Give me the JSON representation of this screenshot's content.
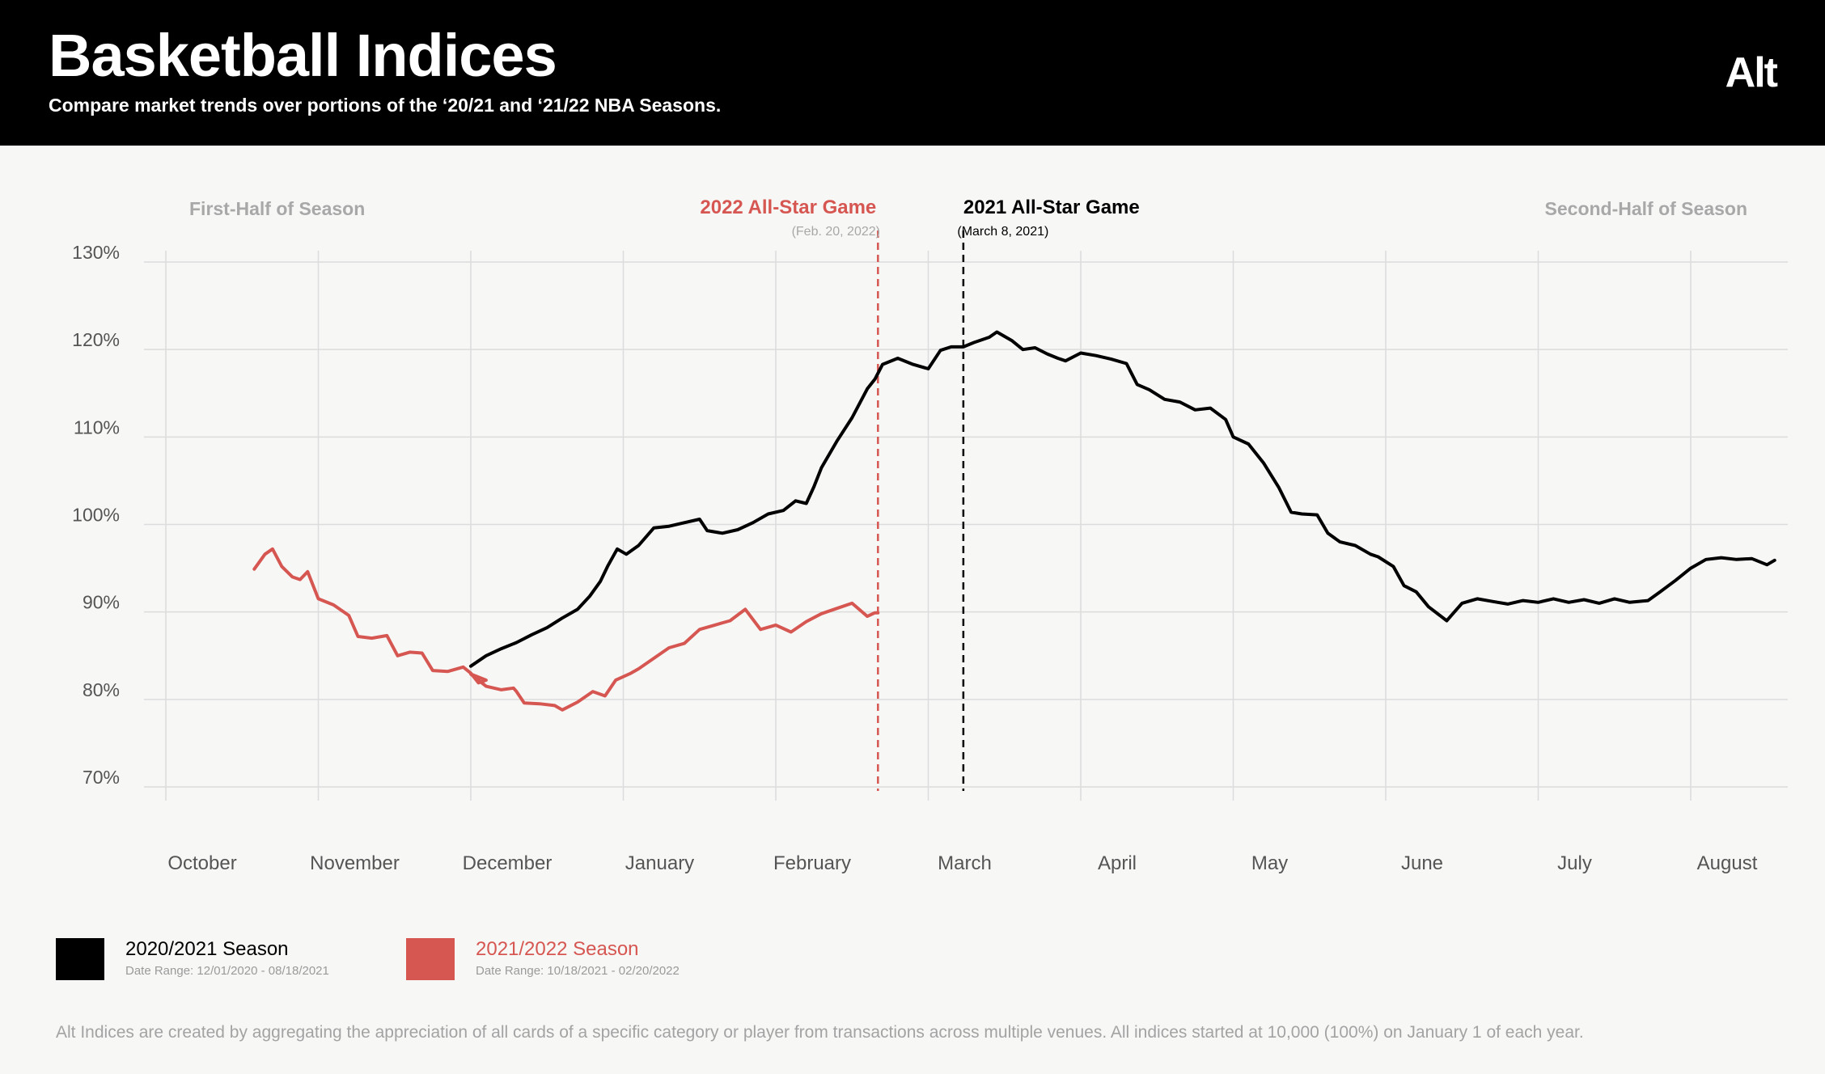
{
  "header": {
    "title": "Basketball Indices",
    "subtitle": "Compare market trends over portions of the ‘20/21 and ‘21/22 NBA Seasons.",
    "logo": "Alt"
  },
  "colors": {
    "black_series": "#000000",
    "red_series": "#d65752",
    "grid": "#dcdcdc",
    "muted_text": "#9a9a9a",
    "axis_text": "#555555"
  },
  "chart_data": {
    "type": "line",
    "ylim": [
      70,
      130
    ],
    "yticks": [
      70,
      80,
      90,
      100,
      110,
      120,
      130
    ],
    "ytick_labels": [
      "70%",
      "80%",
      "90%",
      "100%",
      "110%",
      "120%",
      "130%"
    ],
    "month_labels": [
      "October",
      "November",
      "December",
      "January",
      "February",
      "March",
      "April",
      "May",
      "June",
      "July",
      "August"
    ],
    "section_labels": {
      "first_half": "First-Half of Season",
      "second_half": "Second-Half of Season"
    },
    "annotations": [
      {
        "label": "2022 All-Star Game",
        "sublabel": "(Feb. 20, 2022)",
        "x": 4.67,
        "color": "#d65752"
      },
      {
        "label": "2021 All-Star Game",
        "sublabel": "(March 8, 2021)",
        "x": 5.23,
        "color": "#000000"
      }
    ],
    "series": [
      {
        "name": "2020/2021 Season",
        "date_range": "Date Range: 12/01/2020 - 08/18/2021",
        "color": "#000000",
        "points": [
          [
            2.0,
            83.8
          ],
          [
            2.1,
            85.0
          ],
          [
            2.2,
            85.8
          ],
          [
            2.3,
            86.5
          ],
          [
            2.4,
            87.4
          ],
          [
            2.5,
            88.2
          ],
          [
            2.6,
            89.3
          ],
          [
            2.7,
            90.3
          ],
          [
            2.78,
            91.8
          ],
          [
            2.85,
            93.5
          ],
          [
            2.9,
            95.3
          ],
          [
            2.96,
            97.2
          ],
          [
            3.02,
            96.6
          ],
          [
            3.1,
            97.6
          ],
          [
            3.2,
            99.6
          ],
          [
            3.3,
            99.8
          ],
          [
            3.4,
            100.2
          ],
          [
            3.5,
            100.6
          ],
          [
            3.55,
            99.3
          ],
          [
            3.65,
            99.0
          ],
          [
            3.75,
            99.4
          ],
          [
            3.85,
            100.2
          ],
          [
            3.95,
            101.2
          ],
          [
            4.05,
            101.6
          ],
          [
            4.13,
            102.7
          ],
          [
            4.2,
            102.4
          ],
          [
            4.25,
            104.3
          ],
          [
            4.3,
            106.5
          ],
          [
            4.4,
            109.5
          ],
          [
            4.5,
            112.2
          ],
          [
            4.6,
            115.5
          ],
          [
            4.65,
            116.6
          ],
          [
            4.7,
            118.3
          ],
          [
            4.8,
            119.0
          ],
          [
            4.9,
            118.3
          ],
          [
            5.0,
            117.8
          ],
          [
            5.08,
            119.9
          ],
          [
            5.15,
            120.3
          ],
          [
            5.23,
            120.3
          ],
          [
            5.3,
            120.8
          ],
          [
            5.4,
            121.4
          ],
          [
            5.45,
            122.0
          ],
          [
            5.55,
            121.0
          ],
          [
            5.62,
            120.0
          ],
          [
            5.7,
            120.2
          ],
          [
            5.78,
            119.5
          ],
          [
            5.85,
            119.0
          ],
          [
            5.9,
            118.7
          ],
          [
            6.0,
            119.6
          ],
          [
            6.1,
            119.3
          ],
          [
            6.2,
            118.9
          ],
          [
            6.3,
            118.4
          ],
          [
            6.37,
            116.0
          ],
          [
            6.45,
            115.4
          ],
          [
            6.55,
            114.3
          ],
          [
            6.65,
            114.0
          ],
          [
            6.75,
            113.1
          ],
          [
            6.85,
            113.3
          ],
          [
            6.95,
            112.0
          ],
          [
            7.0,
            110.0
          ],
          [
            7.1,
            109.2
          ],
          [
            7.2,
            107.0
          ],
          [
            7.3,
            104.2
          ],
          [
            7.38,
            101.4
          ],
          [
            7.45,
            101.2
          ],
          [
            7.55,
            101.1
          ],
          [
            7.62,
            99.0
          ],
          [
            7.7,
            98.0
          ],
          [
            7.8,
            97.6
          ],
          [
            7.9,
            96.6
          ],
          [
            7.95,
            96.3
          ],
          [
            8.05,
            95.2
          ],
          [
            8.12,
            93.0
          ],
          [
            8.2,
            92.3
          ],
          [
            8.28,
            90.6
          ],
          [
            8.4,
            89.0
          ],
          [
            8.5,
            91.0
          ],
          [
            8.6,
            91.5
          ],
          [
            8.7,
            91.2
          ],
          [
            8.8,
            90.9
          ],
          [
            8.9,
            91.3
          ],
          [
            9.0,
            91.1
          ],
          [
            9.1,
            91.5
          ],
          [
            9.2,
            91.1
          ],
          [
            9.3,
            91.4
          ],
          [
            9.4,
            91.0
          ],
          [
            9.5,
            91.5
          ],
          [
            9.6,
            91.1
          ],
          [
            9.72,
            91.3
          ],
          [
            9.8,
            92.3
          ],
          [
            9.9,
            93.6
          ],
          [
            10.0,
            95.0
          ],
          [
            10.1,
            96.0
          ],
          [
            10.2,
            96.2
          ],
          [
            10.3,
            96.0
          ],
          [
            10.4,
            96.1
          ],
          [
            10.5,
            95.4
          ],
          [
            10.55,
            95.9
          ]
        ]
      },
      {
        "name": "2021/2022 Season",
        "date_range": "Date Range: 10/18/2021 - 02/20/2022",
        "color": "#d65752",
        "points": [
          [
            0.58,
            94.9
          ],
          [
            0.65,
            96.6
          ],
          [
            0.7,
            97.2
          ],
          [
            0.76,
            95.2
          ],
          [
            0.83,
            94.0
          ],
          [
            0.88,
            93.7
          ],
          [
            0.93,
            94.6
          ],
          [
            1.0,
            91.5
          ],
          [
            1.1,
            90.8
          ],
          [
            1.2,
            89.6
          ],
          [
            1.26,
            87.2
          ],
          [
            1.35,
            87.0
          ],
          [
            1.45,
            87.3
          ],
          [
            1.52,
            85.0
          ],
          [
            1.6,
            85.4
          ],
          [
            1.68,
            85.3
          ],
          [
            1.75,
            83.3
          ],
          [
            1.85,
            83.2
          ],
          [
            1.95,
            83.7
          ],
          [
            2.0,
            83.0
          ],
          [
            2.05,
            81.9
          ],
          [
            2.1,
            82.2
          ],
          [
            2.0,
            82.9
          ],
          [
            2.1,
            81.5
          ],
          [
            2.2,
            81.1
          ],
          [
            2.28,
            81.3
          ],
          [
            2.3,
            80.9
          ],
          [
            2.35,
            79.6
          ],
          [
            2.45,
            79.5
          ],
          [
            2.55,
            79.3
          ],
          [
            2.6,
            78.8
          ],
          [
            2.7,
            79.7
          ],
          [
            2.8,
            80.9
          ],
          [
            2.88,
            80.4
          ],
          [
            2.95,
            82.2
          ],
          [
            3.05,
            83.0
          ],
          [
            3.1,
            83.5
          ],
          [
            3.2,
            84.7
          ],
          [
            3.3,
            85.9
          ],
          [
            3.4,
            86.4
          ],
          [
            3.5,
            88.0
          ],
          [
            3.6,
            88.5
          ],
          [
            3.7,
            89.0
          ],
          [
            3.8,
            90.3
          ],
          [
            3.9,
            88.0
          ],
          [
            4.0,
            88.5
          ],
          [
            4.1,
            87.7
          ],
          [
            4.2,
            88.9
          ],
          [
            4.3,
            89.8
          ],
          [
            4.4,
            90.4
          ],
          [
            4.5,
            91.0
          ],
          [
            4.6,
            89.5
          ],
          [
            4.65,
            89.9
          ],
          [
            4.67,
            89.9
          ]
        ]
      }
    ]
  },
  "legend": [
    {
      "name": "2020/2021 Season",
      "date_range": "Date Range: 12/01/2020 - 08/18/2021"
    },
    {
      "name": "2021/2022 Season",
      "date_range": "Date Range: 10/18/2021 - 02/20/2022"
    }
  ],
  "footnote": "Alt Indices are created by aggregating the appreciation of all cards of a specific category or player from transactions across multiple venues. All indices started at 10,000 (100%) on January 1 of each year."
}
